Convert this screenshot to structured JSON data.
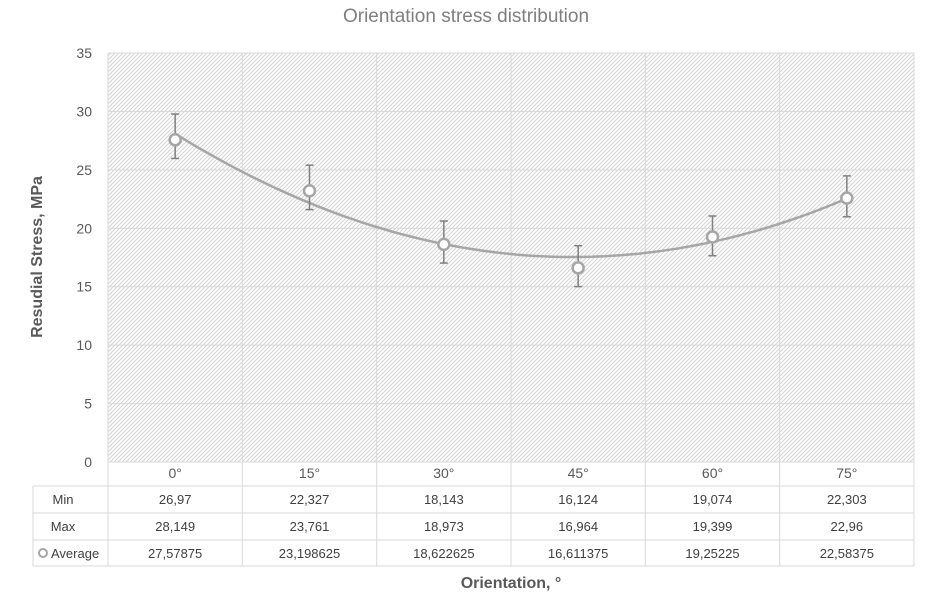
{
  "chart_data": {
    "type": "line",
    "title": "Orientation stress distribution",
    "xlabel": "Orientation, °",
    "ylabel": "Resudial Stress, MPa",
    "categories": [
      "0°",
      "15°",
      "30°",
      "45°",
      "60°",
      "75°"
    ],
    "ylim": [
      0,
      35
    ],
    "yticks": [
      "0",
      "5",
      "10",
      "15",
      "20",
      "25",
      "30",
      "35"
    ],
    "grid": true,
    "legend": "in-table",
    "trendline": "polynomial",
    "series": [
      {
        "name": "Average",
        "values": [
          27.57875,
          23.198625,
          18.622625,
          16.611375,
          19.25225,
          22.58375
        ],
        "error_plus": [
          2.2,
          2.2,
          2.0,
          1.9,
          1.8,
          1.9
        ],
        "error_minus": [
          1.6,
          1.6,
          1.6,
          1.6,
          1.6,
          1.6
        ]
      }
    ],
    "table": {
      "rows": [
        {
          "label": "Min",
          "cells": [
            "26,97",
            "22,327",
            "18,143",
            "16,124",
            "19,074",
            "22,303"
          ]
        },
        {
          "label": "Max",
          "cells": [
            "28,149",
            "23,761",
            "18,973",
            "16,964",
            "19,399",
            "22,96"
          ]
        },
        {
          "label": "Average",
          "cells": [
            "27,57875",
            "23,198625",
            "18,622625",
            "16,611375",
            "19,25225",
            "22,58375"
          ]
        }
      ]
    },
    "colors": {
      "series": "#a6a6a6",
      "grid": "#d9d9d9",
      "hatch": "#d0d0d0",
      "text": "#595959"
    }
  }
}
